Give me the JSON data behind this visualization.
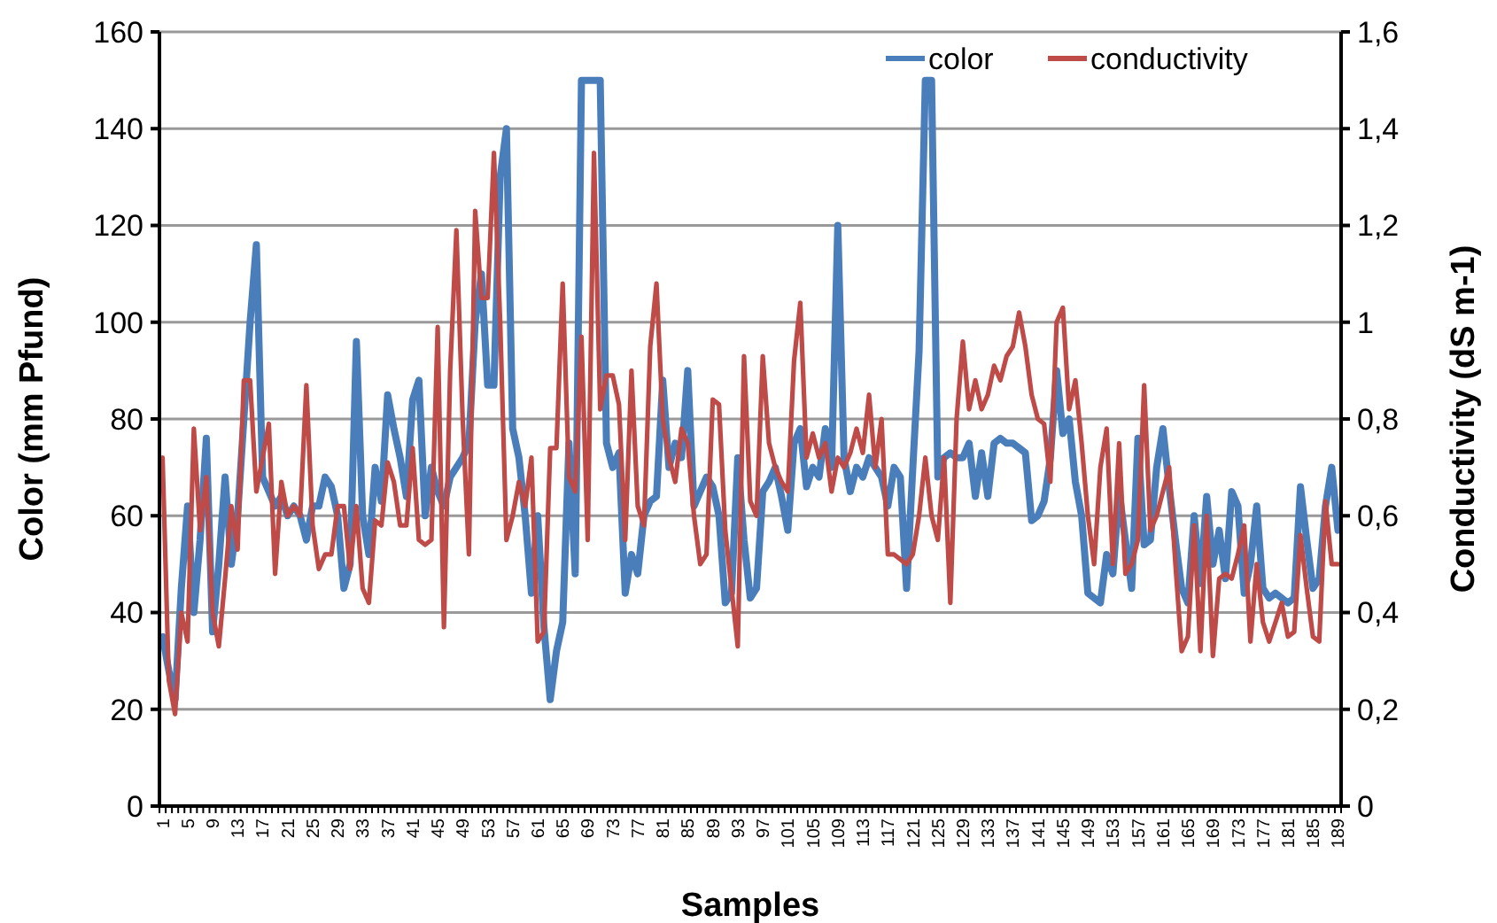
{
  "chart_data": {
    "type": "line",
    "xlabel": "Samples",
    "ylabel": "Color (mm Pfund)",
    "y2label": "Conductivity (dS m-1)",
    "categories": [
      "1",
      null,
      null,
      null,
      "5",
      null,
      null,
      null,
      "9",
      null,
      null,
      null,
      "13",
      null,
      null,
      null,
      "17",
      null,
      null,
      null,
      "21",
      null,
      null,
      null,
      "25",
      null,
      null,
      null,
      "29",
      null,
      null,
      null,
      "33",
      null,
      null,
      null,
      "37",
      null,
      null,
      null,
      "41",
      null,
      null,
      null,
      "45",
      null,
      null,
      null,
      "49",
      null,
      null,
      null,
      "53",
      null,
      null,
      null,
      "57",
      null,
      null,
      null,
      "61",
      null,
      null,
      null,
      "65",
      null,
      null,
      null,
      "69",
      null,
      null,
      null,
      "73",
      null,
      null,
      null,
      "77",
      null,
      null,
      null,
      "81",
      null,
      null,
      null,
      "85",
      null,
      null,
      null,
      "89",
      null,
      null,
      null,
      "93",
      null,
      null,
      null,
      "97",
      null,
      null,
      null,
      "101",
      null,
      null,
      null,
      "105",
      null,
      null,
      null,
      "109",
      null,
      null,
      null,
      "113",
      null,
      null,
      null,
      "117",
      null,
      null,
      null,
      "121",
      null,
      null,
      null,
      "125",
      null,
      null,
      null,
      "129",
      null,
      null,
      null,
      "133",
      null,
      null,
      null,
      "137",
      null,
      null,
      null,
      "141",
      null,
      null,
      null,
      "145",
      null,
      null,
      null,
      "149",
      null,
      null,
      null,
      "153",
      null,
      null,
      null,
      "157",
      null,
      null,
      null,
      "161",
      null,
      null,
      null,
      "165",
      null,
      null,
      null,
      "169",
      null,
      null,
      null,
      "173",
      null,
      null,
      null,
      "177",
      null,
      null,
      null,
      "181",
      null,
      null,
      null,
      "185",
      null,
      null,
      null,
      "189"
    ],
    "series": [
      {
        "name": "color",
        "color": "#4a7ebb",
        "values": [
          35,
          28,
          22,
          45,
          62,
          40,
          55,
          76,
          36,
          50,
          68,
          50,
          60,
          80,
          100,
          116,
          68,
          65,
          62,
          64,
          60,
          62,
          60,
          55,
          62,
          62,
          68,
          66,
          60,
          45,
          50,
          96,
          60,
          52,
          70,
          63,
          85,
          78,
          72,
          64,
          84,
          88,
          60,
          70,
          65,
          62,
          68,
          70,
          72,
          75,
          100,
          110,
          87,
          87,
          130,
          140,
          78,
          72,
          60,
          44,
          60,
          37,
          22,
          32,
          38,
          75,
          48,
          150,
          150,
          150,
          150,
          75,
          70,
          73,
          44,
          52,
          48,
          60,
          63,
          64,
          88,
          70,
          75,
          72,
          90,
          62,
          65,
          68,
          66,
          60,
          42,
          44,
          72,
          55,
          43,
          45,
          65,
          67,
          70,
          64,
          57,
          75,
          78,
          66,
          70,
          68,
          78,
          70,
          120,
          72,
          65,
          70,
          68,
          72,
          70,
          68,
          62,
          70,
          68,
          45,
          70,
          94,
          150,
          150,
          68,
          72,
          73,
          72,
          72,
          75,
          64,
          73,
          64,
          75,
          76,
          75,
          75,
          74,
          73,
          59,
          60,
          63,
          72,
          90,
          77,
          80,
          67,
          60,
          44,
          43,
          42,
          52,
          48,
          65,
          55,
          45,
          76,
          54,
          55,
          70,
          78,
          66,
          55,
          45,
          42,
          60,
          46,
          64,
          50,
          57,
          47,
          65,
          62,
          44,
          50,
          62,
          45,
          43,
          44,
          43,
          42,
          43,
          66,
          55,
          45,
          47,
          62,
          70,
          57
        ]
      },
      {
        "name": "conductivity",
        "color": "#be4b48",
        "axis": "y2",
        "values": [
          0.72,
          0.26,
          0.19,
          0.4,
          0.34,
          0.78,
          0.57,
          0.68,
          0.4,
          0.33,
          0.47,
          0.62,
          0.53,
          0.88,
          0.88,
          0.65,
          0.72,
          0.79,
          0.48,
          0.67,
          0.6,
          0.62,
          0.6,
          0.87,
          0.58,
          0.49,
          0.52,
          0.52,
          0.62,
          0.62,
          0.49,
          0.62,
          0.45,
          0.42,
          0.59,
          0.58,
          0.71,
          0.67,
          0.58,
          0.58,
          0.74,
          0.55,
          0.54,
          0.55,
          0.99,
          0.37,
          0.9,
          1.19,
          0.8,
          0.52,
          1.23,
          1.05,
          1.05,
          1.35,
          1.0,
          0.55,
          0.6,
          0.67,
          0.62,
          0.72,
          0.34,
          0.36,
          0.74,
          0.74,
          1.08,
          0.68,
          0.65,
          0.97,
          0.55,
          1.35,
          0.82,
          0.89,
          0.89,
          0.83,
          0.55,
          0.9,
          0.62,
          0.58,
          0.95,
          1.08,
          0.8,
          0.72,
          0.67,
          0.78,
          0.75,
          0.6,
          0.5,
          0.52,
          0.84,
          0.83,
          0.57,
          0.45,
          0.33,
          0.93,
          0.63,
          0.6,
          0.93,
          0.75,
          0.7,
          0.67,
          0.65,
          0.92,
          1.04,
          0.72,
          0.77,
          0.72,
          0.75,
          0.65,
          0.72,
          0.7,
          0.73,
          0.78,
          0.73,
          0.85,
          0.7,
          0.8,
          0.52,
          0.52,
          0.51,
          0.5,
          0.52,
          0.6,
          0.72,
          0.6,
          0.55,
          0.72,
          0.42,
          0.8,
          0.96,
          0.82,
          0.88,
          0.82,
          0.85,
          0.91,
          0.88,
          0.93,
          0.95,
          1.02,
          0.95,
          0.85,
          0.8,
          0.79,
          0.67,
          1.0,
          1.03,
          0.82,
          0.88,
          0.75,
          0.6,
          0.5,
          0.7,
          0.78,
          0.5,
          0.75,
          0.48,
          0.5,
          0.55,
          0.87,
          0.57,
          0.6,
          0.65,
          0.7,
          0.5,
          0.32,
          0.35,
          0.58,
          0.32,
          0.6,
          0.31,
          0.47,
          0.48,
          0.47,
          0.52,
          0.58,
          0.34,
          0.5,
          0.38,
          0.34,
          0.38,
          0.42,
          0.35,
          0.36,
          0.56,
          0.45,
          0.35,
          0.34,
          0.63,
          0.5,
          0.5
        ]
      }
    ],
    "ylim": [
      0,
      160
    ],
    "yticks": [
      0,
      20,
      40,
      60,
      80,
      100,
      120,
      140,
      160
    ],
    "y2lim": [
      0,
      1.6
    ],
    "y2ticks": [
      0,
      {
        "value": 0.2,
        "label": "0,2"
      },
      {
        "value": 0.4,
        "label": "0,4"
      },
      {
        "value": 0.6,
        "label": "0,6"
      },
      {
        "value": 0.8,
        "label": "0,8"
      },
      1,
      {
        "value": 1.2,
        "label": "1,2"
      },
      {
        "value": 1.4,
        "label": "1,4"
      },
      {
        "value": 1.6,
        "label": "1,6"
      }
    ],
    "grid": "y",
    "legend": "top right",
    "marker": "none",
    "line_style": "solid"
  }
}
